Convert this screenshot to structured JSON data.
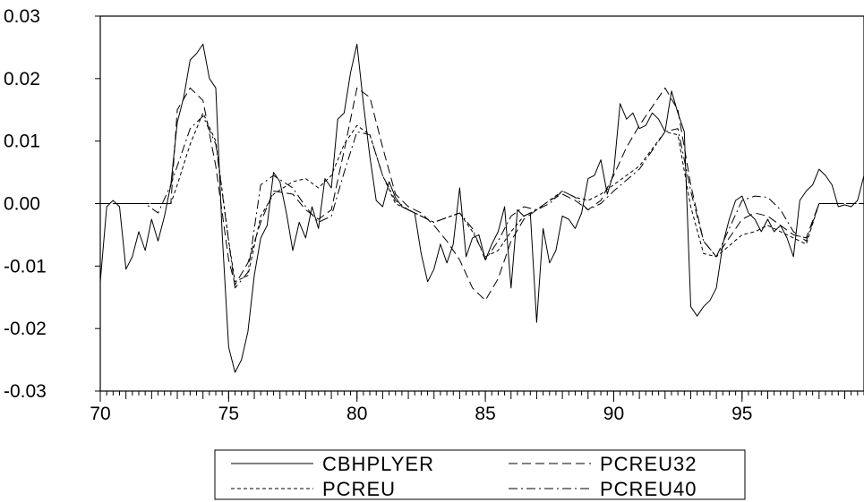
{
  "chart_data": {
    "type": "line",
    "title": "",
    "xlabel": "",
    "ylabel": "",
    "xlim": [
      70,
      99.75
    ],
    "ylim": [
      -0.03,
      0.03
    ],
    "x_ticks": [
      {
        "value": 70,
        "label": "70"
      },
      {
        "value": 75,
        "label": "75"
      },
      {
        "value": 80,
        "label": "80"
      },
      {
        "value": 85,
        "label": "85"
      },
      {
        "value": 90,
        "label": "90"
      },
      {
        "value": 95,
        "label": "95"
      }
    ],
    "y_ticks": [
      {
        "value": 0.03,
        "label": "0.03"
      },
      {
        "value": 0.02,
        "label": "0.02"
      },
      {
        "value": 0.01,
        "label": "0.01"
      },
      {
        "value": 0.0,
        "label": "0.00"
      },
      {
        "value": -0.01,
        "label": "-0.01"
      },
      {
        "value": -0.02,
        "label": "-0.02"
      },
      {
        "value": -0.03,
        "label": "-0.03"
      }
    ],
    "grid": false,
    "legend_position": "bottom-center",
    "series": [
      {
        "name": "CBHPLYER",
        "style": "solid",
        "x": [
          70.0,
          70.25,
          70.5,
          70.75,
          71.0,
          71.25,
          71.5,
          71.75,
          72.0,
          72.25,
          72.5,
          72.75,
          73.0,
          73.25,
          73.5,
          73.75,
          74.0,
          74.25,
          74.5,
          74.75,
          75.0,
          75.25,
          75.5,
          75.75,
          76.0,
          76.25,
          76.5,
          76.75,
          77.0,
          77.25,
          77.5,
          77.75,
          78.0,
          78.25,
          78.5,
          78.75,
          79.0,
          79.25,
          79.5,
          79.75,
          80.0,
          80.25,
          80.5,
          80.75,
          81.0,
          81.25,
          81.5,
          81.75,
          82.0,
          82.25,
          82.5,
          82.75,
          83.0,
          83.25,
          83.5,
          83.75,
          84.0,
          84.25,
          84.5,
          84.75,
          85.0,
          85.25,
          85.5,
          85.75,
          86.0,
          86.25,
          86.5,
          86.75,
          87.0,
          87.25,
          87.5,
          87.75,
          88.0,
          88.25,
          88.5,
          88.75,
          89.0,
          89.25,
          89.5,
          89.75,
          90.0,
          90.25,
          90.5,
          90.75,
          91.0,
          91.25,
          91.5,
          91.75,
          92.0,
          92.25,
          92.5,
          92.75,
          93.0,
          93.25,
          93.5,
          93.75,
          94.0,
          94.25,
          94.5,
          94.75,
          95.0,
          95.25,
          95.5,
          95.75,
          96.0,
          96.25,
          96.5,
          96.75,
          97.0,
          97.25,
          97.5,
          97.75,
          98.0,
          98.25,
          98.5,
          98.75,
          99.0,
          99.25,
          99.5,
          99.75
        ],
        "values": [
          -0.0125,
          -0.0005,
          0.0005,
          -0.0005,
          -0.0105,
          -0.0085,
          -0.0045,
          -0.0075,
          -0.0025,
          -0.006,
          -0.002,
          0.003,
          0.013,
          0.017,
          0.023,
          0.024,
          0.0255,
          0.02,
          0.0185,
          -0.005,
          -0.023,
          -0.027,
          -0.025,
          -0.0205,
          -0.0115,
          -0.0055,
          -0.0035,
          0.005,
          0.0035,
          -0.0015,
          -0.0075,
          -0.003,
          -0.0055,
          -0.0005,
          -0.004,
          0.004,
          0.0025,
          0.0135,
          0.0145,
          0.021,
          0.0255,
          0.016,
          0.0075,
          0.0005,
          -0.0005,
          0.0035,
          0.001,
          -0.0005,
          -0.001,
          -0.0015,
          -0.008,
          -0.0125,
          -0.0105,
          -0.0065,
          -0.0095,
          -0.0065,
          0.0025,
          -0.0085,
          -0.0055,
          -0.005,
          -0.009,
          -0.0065,
          -0.0045,
          -0.0005,
          -0.0135,
          -0.001,
          -0.002,
          -0.0015,
          -0.019,
          -0.004,
          -0.0095,
          -0.0075,
          -0.002,
          -0.0025,
          -0.004,
          -0.0015,
          0.004,
          0.0045,
          0.007,
          0.0015,
          0.005,
          0.016,
          0.0135,
          0.0145,
          0.012,
          0.0125,
          0.0145,
          0.0135,
          0.0115,
          0.018,
          0.0145,
          0.0115,
          -0.0165,
          -0.018,
          -0.0165,
          -0.0155,
          -0.0135,
          -0.0065,
          -0.0025,
          0.0005,
          0.0012,
          -0.0015,
          -0.0025,
          -0.0045,
          -0.0025,
          -0.0045,
          -0.0035,
          -0.0055,
          -0.0085,
          0.0005,
          0.002,
          0.003,
          0.0055,
          0.0045,
          0.003,
          -0.0005,
          -0.0002,
          -0.0005,
          0.0005,
          0.0045
        ]
      },
      {
        "name": "PCREU",
        "style": "dash-short",
        "x": [
          70,
          71,
          72,
          72.75,
          73,
          73.5,
          74,
          74.5,
          75,
          75.25,
          75.75,
          76.25,
          76.75,
          77.5,
          78,
          78.5,
          79,
          79.5,
          80,
          80.5,
          81,
          81.5,
          82,
          82.5,
          83,
          84,
          84.5,
          85,
          85.5,
          86,
          86.5,
          87,
          87.5,
          88,
          88.5,
          89,
          89.5,
          90,
          91,
          92,
          92.5,
          93,
          93.5,
          94,
          95,
          95.5,
          96,
          96.5,
          97,
          97.5,
          98,
          99,
          99.75
        ],
        "values": [
          0,
          0,
          0,
          0,
          0.003,
          0.0095,
          0.0145,
          0.01,
          -0.006,
          -0.0125,
          -0.0115,
          -0.002,
          0.0015,
          0.0035,
          0.004,
          0.0025,
          0.0045,
          0.0095,
          0.0125,
          0.011,
          0.0045,
          0,
          -0.001,
          -0.002,
          -0.003,
          -0.0015,
          -0.0045,
          -0.0085,
          -0.0075,
          -0.0045,
          -0.002,
          -0.001,
          0.0005,
          0.002,
          0.001,
          0.0005,
          0.0015,
          0.003,
          0.006,
          0.0115,
          0.011,
          -0.0005,
          -0.008,
          -0.0085,
          -0.005,
          -0.0045,
          -0.0035,
          -0.0045,
          -0.0055,
          -0.0065,
          0,
          0,
          0
        ]
      },
      {
        "name": "PCREU32",
        "style": "dash-long",
        "x": [
          70,
          71,
          72,
          72.75,
          73,
          73.5,
          74,
          74.5,
          75,
          75.25,
          75.75,
          76.25,
          76.75,
          77.5,
          78,
          78.5,
          79,
          79.5,
          80,
          80.5,
          81,
          81.5,
          82,
          82.5,
          83,
          83.5,
          84,
          84.5,
          85,
          85.5,
          86,
          86.5,
          87,
          87.5,
          88,
          88.5,
          89,
          89.5,
          90,
          90.5,
          91,
          91.5,
          92,
          92.5,
          93,
          93.5,
          94,
          94.5,
          95,
          95.5,
          96,
          96.5,
          97,
          97.5,
          98,
          99,
          99.75
        ],
        "values": [
          0,
          0,
          0,
          0,
          0.015,
          0.0185,
          0.0165,
          0.006,
          -0.009,
          -0.013,
          -0.0095,
          -0.003,
          0.002,
          0.0015,
          -0.001,
          -0.0025,
          -0.001,
          0.0085,
          0.0185,
          0.017,
          0.009,
          0.0015,
          -0.0005,
          -0.0015,
          -0.0035,
          -0.006,
          -0.009,
          -0.0135,
          -0.0155,
          -0.012,
          -0.006,
          -0.0025,
          -0.001,
          0.0005,
          0.0015,
          0.0005,
          -0.001,
          0.0005,
          0.0045,
          0.009,
          0.0125,
          0.0155,
          0.0185,
          0.015,
          0.003,
          -0.006,
          -0.0085,
          -0.0055,
          -0.0025,
          -0.0015,
          -0.002,
          -0.0035,
          -0.005,
          -0.0055,
          0,
          0,
          0
        ]
      },
      {
        "name": "PCREU40",
        "style": "dash-dot",
        "x": [
          70,
          71,
          71.75,
          72.25,
          72.75,
          73,
          73.5,
          74,
          74.5,
          75,
          75.25,
          75.75,
          76.25,
          76.75,
          77.5,
          78,
          78.5,
          79,
          79.5,
          80,
          80.5,
          81,
          81.5,
          82,
          82.5,
          83,
          84,
          84.5,
          85,
          85.5,
          86,
          86.5,
          87,
          87.5,
          88,
          88.5,
          89,
          89.5,
          90,
          91,
          92,
          92.5,
          93,
          93.5,
          94,
          94.5,
          95,
          95.5,
          96,
          96.5,
          97,
          97.5,
          98,
          99,
          99.75
        ],
        "values": [
          0,
          0,
          0,
          -0.0015,
          0.003,
          0.006,
          0.012,
          0.014,
          0.0095,
          -0.006,
          -0.0135,
          -0.011,
          0.003,
          0.0045,
          0.0025,
          -0.0005,
          -0.003,
          -0.002,
          0.005,
          0.0115,
          0.011,
          0.0045,
          0.0005,
          -0.001,
          -0.002,
          -0.003,
          -0.0015,
          -0.004,
          -0.009,
          -0.006,
          -0.002,
          -0.0005,
          -0.001,
          0,
          0.002,
          0.001,
          -0.001,
          0,
          0.002,
          0.0055,
          0.0115,
          0.012,
          0.002,
          -0.006,
          -0.0085,
          -0.004,
          0.0005,
          0.0012,
          0.001,
          -0.001,
          -0.0045,
          -0.006,
          0,
          0,
          0
        ]
      }
    ]
  }
}
